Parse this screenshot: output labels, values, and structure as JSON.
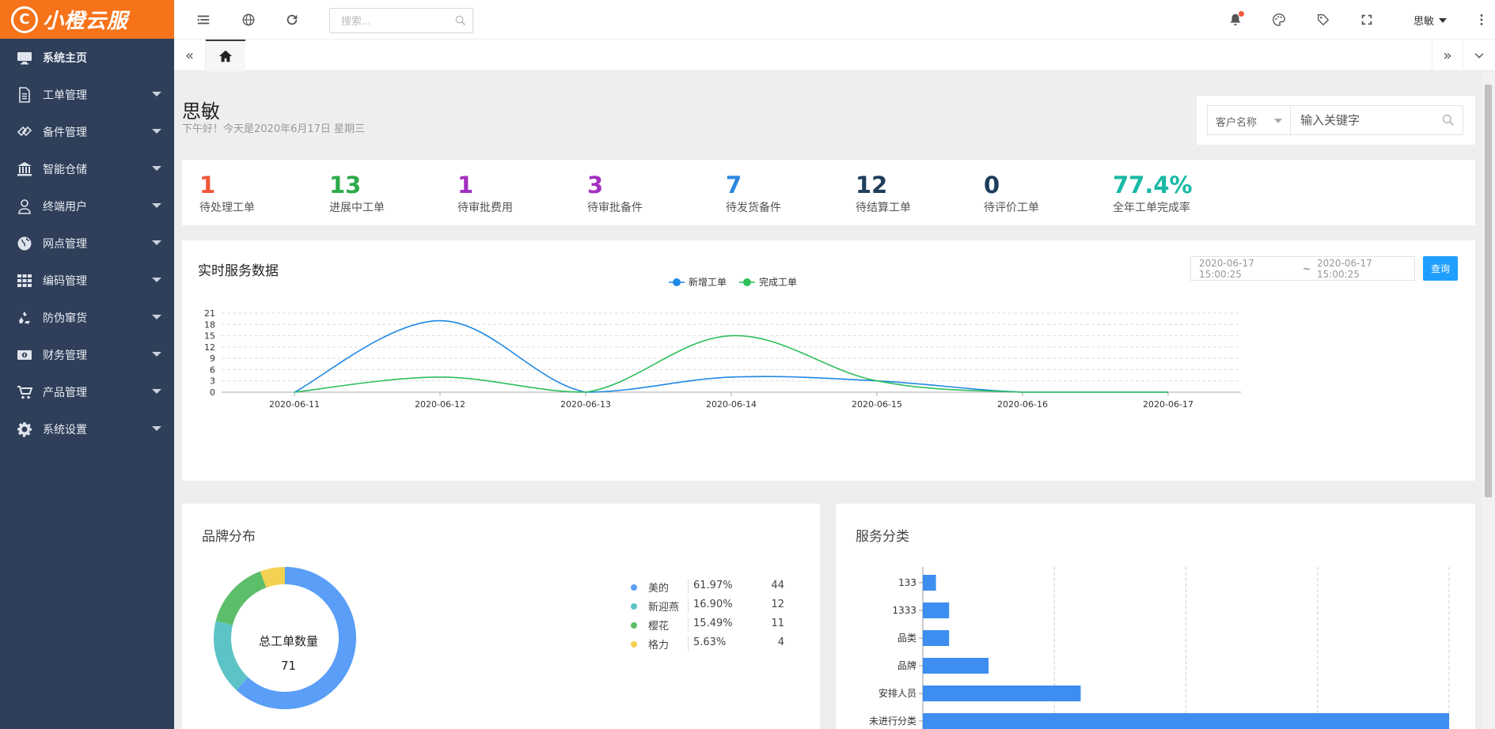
{
  "app": {
    "logo_text": "小橙云服",
    "logo_mark": "C"
  },
  "sidebar": {
    "items": [
      {
        "label": "系统主页",
        "icon": "monitor-icon",
        "has_caret": false
      },
      {
        "label": "工单管理",
        "icon": "document-icon",
        "has_caret": true
      },
      {
        "label": "备件管理",
        "icon": "tag-icon",
        "has_caret": true
      },
      {
        "label": "智能仓储",
        "icon": "bank-icon",
        "has_caret": true
      },
      {
        "label": "终端用户",
        "icon": "user-icon",
        "has_caret": true
      },
      {
        "label": "网点管理",
        "icon": "globe-icon",
        "has_caret": true
      },
      {
        "label": "编码管理",
        "icon": "grid-icon",
        "has_caret": true
      },
      {
        "label": "防伪窜货",
        "icon": "recycle-icon",
        "has_caret": true
      },
      {
        "label": "财务管理",
        "icon": "money-icon",
        "has_caret": true
      },
      {
        "label": "产品管理",
        "icon": "cart-icon",
        "has_caret": true
      },
      {
        "label": "系统设置",
        "icon": "gear-icon",
        "has_caret": true
      }
    ]
  },
  "header": {
    "search_placeholder": "搜索...",
    "user_name": "思敏"
  },
  "greeting": {
    "name": "思敏",
    "subtitle": "下午好！今天是2020年6月17日 星期三"
  },
  "customer_search": {
    "select_label": "客户名称",
    "input_placeholder": "输入关键字"
  },
  "stats": [
    {
      "value": "1",
      "label": "待处理工单",
      "color": "#f1573a"
    },
    {
      "value": "13",
      "label": "进展中工单",
      "color": "#2eab4a"
    },
    {
      "value": "1",
      "label": "待审批费用",
      "color": "#a22fc0"
    },
    {
      "value": "3",
      "label": "待审批备件",
      "color": "#a22fc0"
    },
    {
      "value": "7",
      "label": "待发货备件",
      "color": "#2b87e0"
    },
    {
      "value": "12",
      "label": "待结算工单",
      "color": "#1f3d5c"
    },
    {
      "value": "0",
      "label": "待评价工单",
      "color": "#1f3d5c"
    },
    {
      "value": "77.4%",
      "label": "全年工单完成率",
      "color": "#19b9a5"
    }
  ],
  "realtime": {
    "title": "实时服务数据",
    "date_start": "2020-06-17 15:00:25",
    "date_sep": "~",
    "date_end": "2020-06-17 15:00:25",
    "query_label": "查询"
  },
  "brand": {
    "title": "品牌分布",
    "center_title": "总工单数量",
    "center_value": "71",
    "items": [
      {
        "name": "美的",
        "pct": "61.97%",
        "count": "44",
        "value": 44,
        "color": "#5a9ef7"
      },
      {
        "name": "新迎燕",
        "pct": "16.90%",
        "count": "12",
        "value": 12,
        "color": "#5cc3c6"
      },
      {
        "name": "樱花",
        "pct": "15.49%",
        "count": "11",
        "value": 11,
        "color": "#5cbe6a"
      },
      {
        "name": "格力",
        "pct": "5.63%",
        "count": "4",
        "value": 4,
        "color": "#f3d152"
      }
    ]
  },
  "service": {
    "title": "服务分类"
  },
  "chart_data": [
    {
      "type": "line",
      "title": "实时服务数据",
      "x": [
        "2020-06-11",
        "2020-06-12",
        "2020-06-13",
        "2020-06-14",
        "2020-06-15",
        "2020-06-16",
        "2020-06-17"
      ],
      "series": [
        {
          "name": "新增工单",
          "color": "#1e88e5",
          "values": [
            0,
            19,
            0,
            4,
            3,
            0,
            0
          ]
        },
        {
          "name": "完成工单",
          "color": "#2ebf5a",
          "values": [
            0,
            4,
            0,
            15,
            3,
            0,
            0
          ]
        }
      ],
      "yticks": [
        0,
        3,
        6,
        9,
        12,
        15,
        18,
        21
      ],
      "ylim": [
        0,
        21
      ],
      "grid": true,
      "legend": "top-center"
    },
    {
      "type": "pie",
      "title": "品牌分布",
      "categories": [
        "美的",
        "新迎燕",
        "樱花",
        "格力"
      ],
      "values": [
        44,
        12,
        11,
        4
      ]
    },
    {
      "type": "bar",
      "orientation": "horizontal",
      "title": "服务分类",
      "categories": [
        "133",
        "1333",
        "品类",
        "品牌",
        "安排人员",
        "未进行分类"
      ],
      "values": [
        1,
        2,
        2,
        5,
        12,
        40
      ],
      "xlim": [
        0,
        40
      ],
      "color": "#3d8ef0"
    }
  ]
}
